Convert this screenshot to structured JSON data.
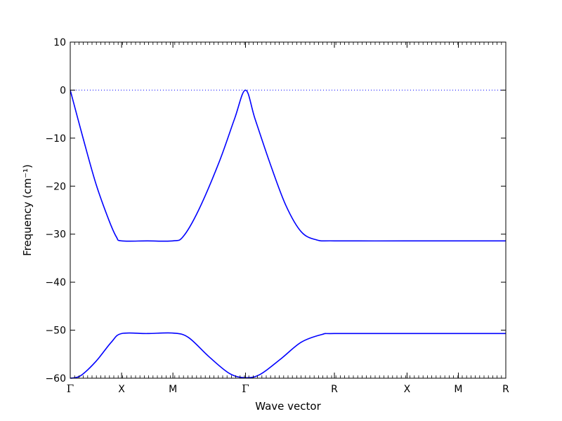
{
  "chart_data": {
    "type": "line",
    "xlabel": "Wave vector",
    "ylabel": "Frequency (cm⁻¹)",
    "ylim": [
      -60,
      10
    ],
    "yticks": [
      10,
      0,
      -10,
      -20,
      -30,
      -40,
      -50,
      -60
    ],
    "ytick_labels": [
      "10",
      "0",
      "−10",
      "−20",
      "−30",
      "−40",
      "−50",
      "−60"
    ],
    "xlim": [
      0,
      8.485
    ],
    "high_symmetry_points": [
      {
        "label": "Γ",
        "x": 0
      },
      {
        "label": "X",
        "x": 1
      },
      {
        "label": "M",
        "x": 2
      },
      {
        "label": "Γ",
        "x": 3.414
      },
      {
        "label": "R",
        "x": 5.146
      },
      {
        "label": "X",
        "x": 6.561
      },
      {
        "label": "M",
        "x": 7.561
      },
      {
        "label": "R",
        "x": 8.485
      }
    ],
    "zero_line": {
      "y": 0,
      "style": "dotted"
    },
    "grid": false,
    "series": [
      {
        "color": "#0000ff",
        "points": [
          [
            0,
            0
          ],
          [
            0.25,
            -10
          ],
          [
            0.5,
            -19.5
          ],
          [
            0.75,
            -27
          ],
          [
            0.9,
            -30.6
          ],
          [
            1,
            -31.4
          ],
          [
            1.5,
            -31.4
          ],
          [
            2,
            -31.4
          ],
          [
            2.2,
            -30.5
          ],
          [
            2.5,
            -25
          ],
          [
            2.9,
            -15
          ],
          [
            3.2,
            -6
          ],
          [
            3.414,
            0
          ],
          [
            3.6,
            -6
          ],
          [
            3.9,
            -15.5
          ],
          [
            4.2,
            -24
          ],
          [
            4.5,
            -29.5
          ],
          [
            4.8,
            -31.2
          ],
          [
            5.146,
            -31.4
          ],
          [
            6.561,
            -31.4
          ],
          [
            7.561,
            -31.4
          ],
          [
            8.485,
            -31.4
          ]
        ]
      },
      {
        "color": "#0000ff",
        "points": [
          [
            0,
            -60
          ],
          [
            0.2,
            -59.5
          ],
          [
            0.5,
            -56.5
          ],
          [
            0.8,
            -52.5
          ],
          [
            1,
            -50.7
          ],
          [
            1.5,
            -50.7
          ],
          [
            2,
            -50.6
          ],
          [
            2.3,
            -51.5
          ],
          [
            2.7,
            -55.5
          ],
          [
            3.1,
            -59
          ],
          [
            3.414,
            -59.9
          ],
          [
            3.7,
            -59.2
          ],
          [
            4.1,
            -56
          ],
          [
            4.5,
            -52.5
          ],
          [
            4.9,
            -50.9
          ],
          [
            5.146,
            -50.7
          ],
          [
            6.561,
            -50.7
          ],
          [
            7.561,
            -50.7
          ],
          [
            8.485,
            -50.7
          ]
        ]
      }
    ]
  }
}
